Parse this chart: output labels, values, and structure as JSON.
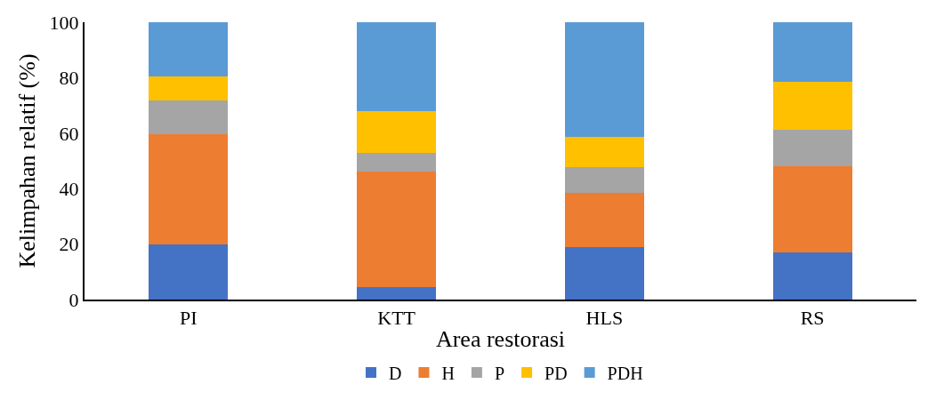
{
  "chart_data": {
    "type": "bar",
    "stacked": true,
    "xlabel": "Area restorasi",
    "ylabel": "Kelimpahan relatif (%)",
    "categories": [
      "PI",
      "KTT",
      "HLS",
      "RS"
    ],
    "series": [
      {
        "name": "D",
        "color": "#4472c4",
        "values": [
          19.8,
          4.4,
          18.8,
          16.9
        ]
      },
      {
        "name": "H",
        "color": "#ed7d31",
        "values": [
          39.9,
          41.9,
          19.6,
          31.2
        ]
      },
      {
        "name": "P",
        "color": "#a5a5a5",
        "values": [
          12.0,
          6.5,
          9.2,
          13.2
        ]
      },
      {
        "name": "PD",
        "color": "#ffc000",
        "values": [
          8.7,
          15.2,
          11.0,
          17.2
        ]
      },
      {
        "name": "PDH",
        "color": "#5b9bd5",
        "values": [
          19.6,
          32.0,
          41.4,
          21.5
        ]
      }
    ],
    "ylim": [
      0,
      100
    ],
    "yticks": [
      0,
      20,
      40,
      60,
      80,
      100
    ],
    "grid": false,
    "legend": "bottom"
  }
}
